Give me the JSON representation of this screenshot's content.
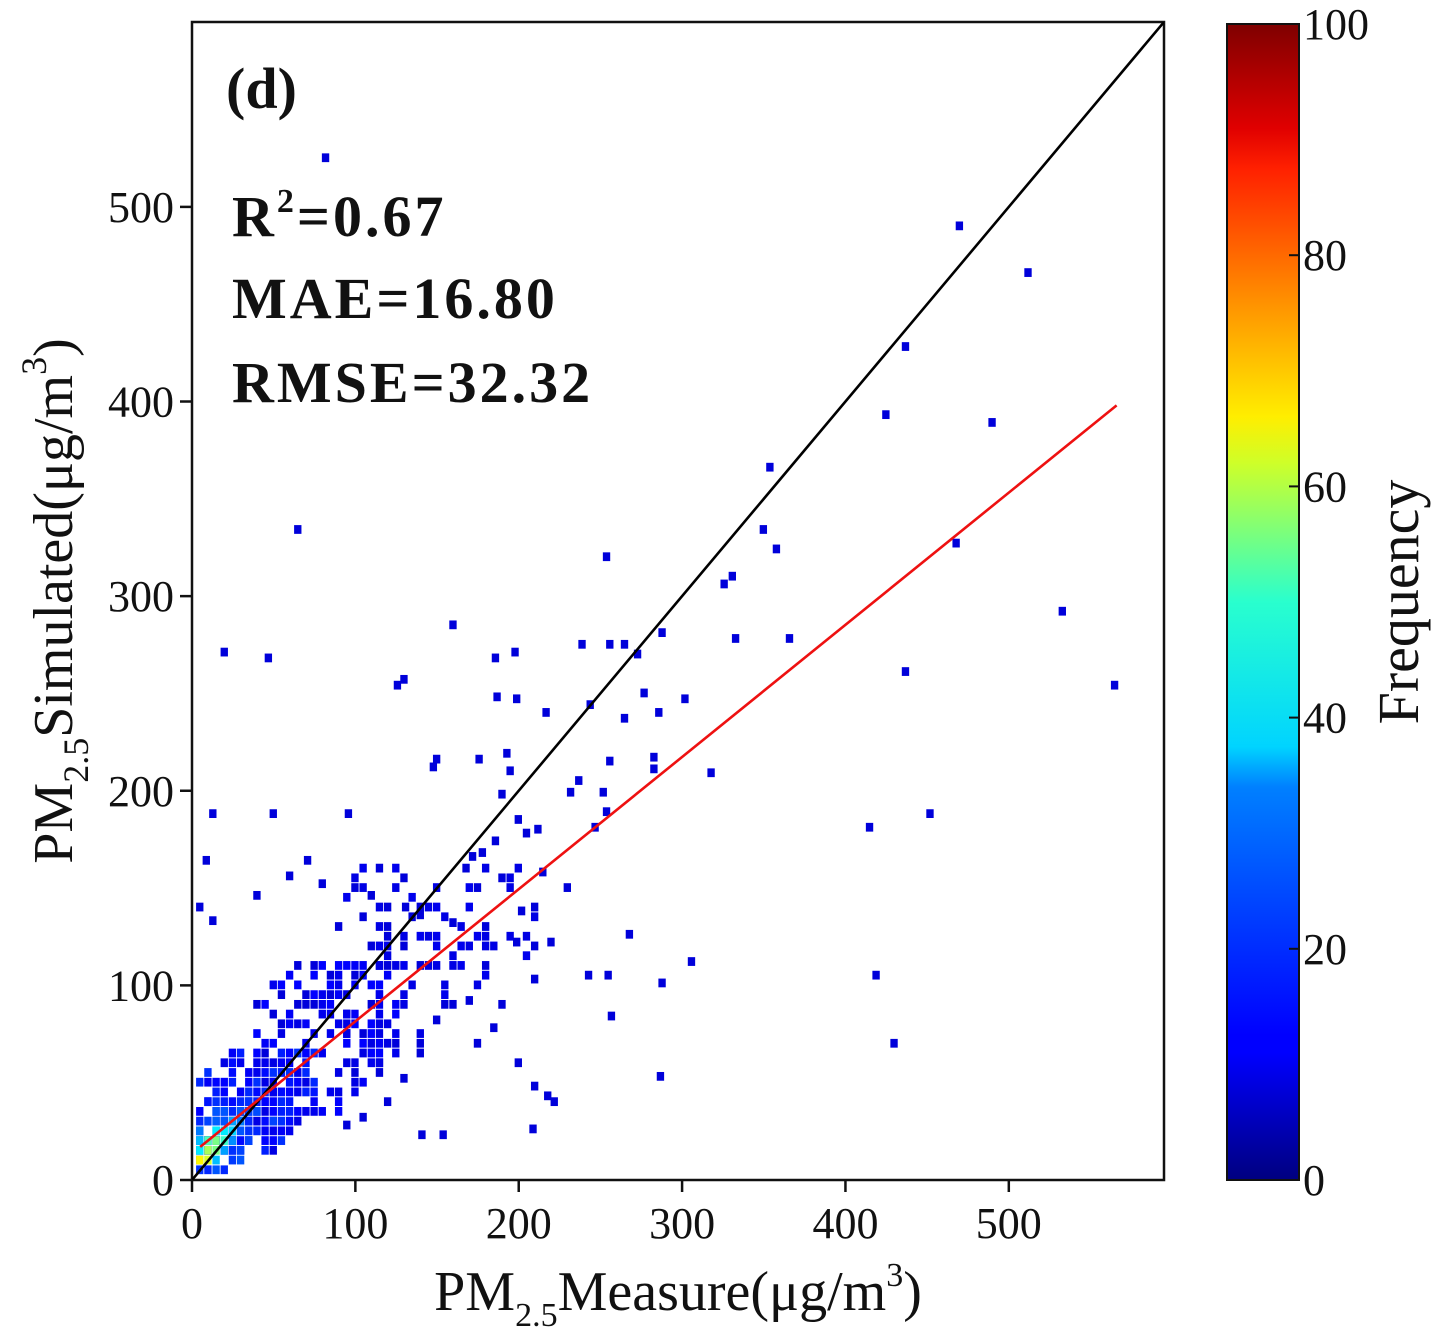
{
  "chart_data": {
    "type": "heatmap",
    "subtype": "density-scatter",
    "panel_label": "(d)",
    "xlabel": {
      "prefix": "PM",
      "sub": "2.5",
      "main": "Measure(μg/m",
      "sup": "3",
      "suffix": ")"
    },
    "ylabel": {
      "prefix": "PM",
      "sub": "2.5",
      "main": "Simulated(μg/m",
      "sup": "3",
      "suffix": ")"
    },
    "xlim": [
      0,
      595
    ],
    "ylim": [
      0,
      595
    ],
    "xticks": [
      0,
      100,
      200,
      300,
      400,
      500
    ],
    "yticks": [
      0,
      100,
      200,
      300,
      400,
      500
    ],
    "stats": {
      "r2": {
        "label": "R",
        "sup": "2",
        "value": "=0.67"
      },
      "mae": "MAE=16.80",
      "rmse": "RMSE=32.32"
    },
    "reference_line": {
      "name": "1:1 line",
      "color": "#000000",
      "from": [
        0,
        0
      ],
      "to": [
        595,
        595
      ]
    },
    "fit_line": {
      "name": "linear fit",
      "color": "#ee1111",
      "from": [
        5,
        17
      ],
      "to": [
        566,
        398
      ]
    },
    "colorbar": {
      "label": "Frequency",
      "range": [
        0,
        100
      ],
      "ticks": [
        0,
        20,
        40,
        60,
        80,
        100
      ],
      "colormap": "jet"
    },
    "bin_size": 5,
    "dense_bins": [
      [
        5,
        10,
        60
      ],
      [
        10,
        10,
        55
      ],
      [
        10,
        15,
        50
      ],
      [
        15,
        15,
        45
      ],
      [
        10,
        20,
        40
      ],
      [
        15,
        20,
        45
      ],
      [
        20,
        20,
        38
      ],
      [
        20,
        25,
        30
      ],
      [
        25,
        25,
        28
      ],
      [
        15,
        25,
        30
      ],
      [
        25,
        30,
        22
      ],
      [
        30,
        30,
        18
      ],
      [
        30,
        35,
        14
      ],
      [
        35,
        35,
        12
      ],
      [
        35,
        40,
        10
      ],
      [
        40,
        40,
        8
      ],
      [
        5,
        15,
        30
      ],
      [
        5,
        20,
        25
      ],
      [
        5,
        25,
        18
      ],
      [
        15,
        30,
        15
      ],
      [
        20,
        30,
        14
      ],
      [
        10,
        30,
        12
      ],
      [
        40,
        45,
        6
      ],
      [
        45,
        45,
        5
      ],
      [
        25,
        20,
        20
      ],
      [
        30,
        25,
        14
      ],
      [
        20,
        15,
        22
      ],
      [
        35,
        30,
        9
      ],
      [
        15,
        10,
        25
      ],
      [
        40,
        35,
        7
      ],
      [
        45,
        40,
        5
      ],
      [
        50,
        50,
        4
      ],
      [
        55,
        55,
        4
      ],
      [
        50,
        45,
        3
      ],
      [
        60,
        60,
        4
      ]
    ],
    "cluster_regions": [
      {
        "x": [
          5,
          75
        ],
        "y": [
          15,
          65
        ],
        "density": 0.7,
        "freq": [
          2,
          10
        ]
      },
      {
        "x": [
          40,
          130
        ],
        "y": [
          35,
          110
        ],
        "density": 0.42,
        "freq": [
          1,
          5
        ]
      },
      {
        "x": [
          90,
          210
        ],
        "y": [
          60,
          160
        ],
        "density": 0.22,
        "freq": [
          1,
          3
        ]
      },
      {
        "x": [
          5,
          50
        ],
        "y": [
          5,
          40
        ],
        "density": 0.5,
        "freq": [
          5,
          14
        ]
      }
    ],
    "sparse_points": [
      [
        82,
        525
      ],
      [
        470,
        490
      ],
      [
        512,
        466
      ],
      [
        437,
        428
      ],
      [
        425,
        393
      ],
      [
        490,
        389
      ],
      [
        354,
        366
      ],
      [
        468,
        327
      ],
      [
        358,
        324
      ],
      [
        350,
        334
      ],
      [
        331,
        310
      ],
      [
        326,
        306
      ],
      [
        254,
        320
      ],
      [
        65,
        334
      ],
      [
        160,
        285
      ],
      [
        288,
        281
      ],
      [
        333,
        278
      ],
      [
        366,
        278
      ],
      [
        533,
        292
      ],
      [
        537,
        292
      ],
      [
        20,
        271
      ],
      [
        47,
        268
      ],
      [
        186,
        268
      ],
      [
        198,
        271
      ],
      [
        239,
        275
      ],
      [
        256,
        275
      ],
      [
        265,
        275
      ],
      [
        273,
        270
      ],
      [
        437,
        261
      ],
      [
        565,
        254
      ],
      [
        130,
        257
      ],
      [
        126,
        254
      ],
      [
        187,
        248
      ],
      [
        199,
        247
      ],
      [
        302,
        247
      ],
      [
        217,
        240
      ],
      [
        244,
        244
      ],
      [
        286,
        240
      ],
      [
        265,
        237
      ],
      [
        277,
        250
      ],
      [
        193,
        219
      ],
      [
        176,
        216
      ],
      [
        150,
        216
      ],
      [
        148,
        212
      ],
      [
        195,
        210
      ],
      [
        237,
        205
      ],
      [
        256,
        215
      ],
      [
        283,
        211
      ],
      [
        318,
        209
      ],
      [
        283,
        217
      ],
      [
        232,
        199
      ],
      [
        252,
        199
      ],
      [
        415,
        181
      ],
      [
        452,
        188
      ],
      [
        13,
        188
      ],
      [
        50,
        188
      ],
      [
        96,
        188
      ],
      [
        247,
        181
      ],
      [
        254,
        189
      ],
      [
        9,
        164
      ],
      [
        71,
        164
      ],
      [
        13,
        133
      ],
      [
        5,
        140
      ],
      [
        131,
        140
      ],
      [
        168,
        150
      ],
      [
        202,
        138
      ],
      [
        220,
        122
      ],
      [
        268,
        126
      ],
      [
        306,
        112
      ],
      [
        243,
        105
      ],
      [
        255,
        105
      ],
      [
        288,
        101
      ],
      [
        419,
        105
      ],
      [
        257,
        84
      ],
      [
        430,
        70
      ],
      [
        287,
        53
      ],
      [
        218,
        43
      ],
      [
        209,
        26
      ],
      [
        141,
        23
      ],
      [
        154,
        23
      ],
      [
        40,
        146
      ],
      [
        60,
        156
      ],
      [
        80,
        152
      ],
      [
        100,
        150
      ],
      [
        110,
        146
      ],
      [
        120,
        140
      ],
      [
        140,
        136
      ],
      [
        160,
        132
      ],
      [
        179,
        128
      ],
      [
        180,
        110
      ],
      [
        199,
        122
      ],
      [
        210,
        103
      ],
      [
        190,
        90
      ],
      [
        170,
        92
      ],
      [
        150,
        82
      ],
      [
        140,
        64
      ],
      [
        130,
        52
      ],
      [
        120,
        40
      ],
      [
        105,
        32
      ],
      [
        95,
        28
      ],
      [
        175,
        70
      ],
      [
        185,
        78
      ],
      [
        200,
        60
      ],
      [
        210,
        48
      ],
      [
        222,
        40
      ],
      [
        200,
        185
      ],
      [
        186,
        174
      ],
      [
        178,
        168
      ],
      [
        172,
        166
      ],
      [
        168,
        160
      ],
      [
        205,
        178
      ],
      [
        190,
        198
      ],
      [
        215,
        158
      ],
      [
        230,
        150
      ],
      [
        212,
        180
      ]
    ]
  }
}
